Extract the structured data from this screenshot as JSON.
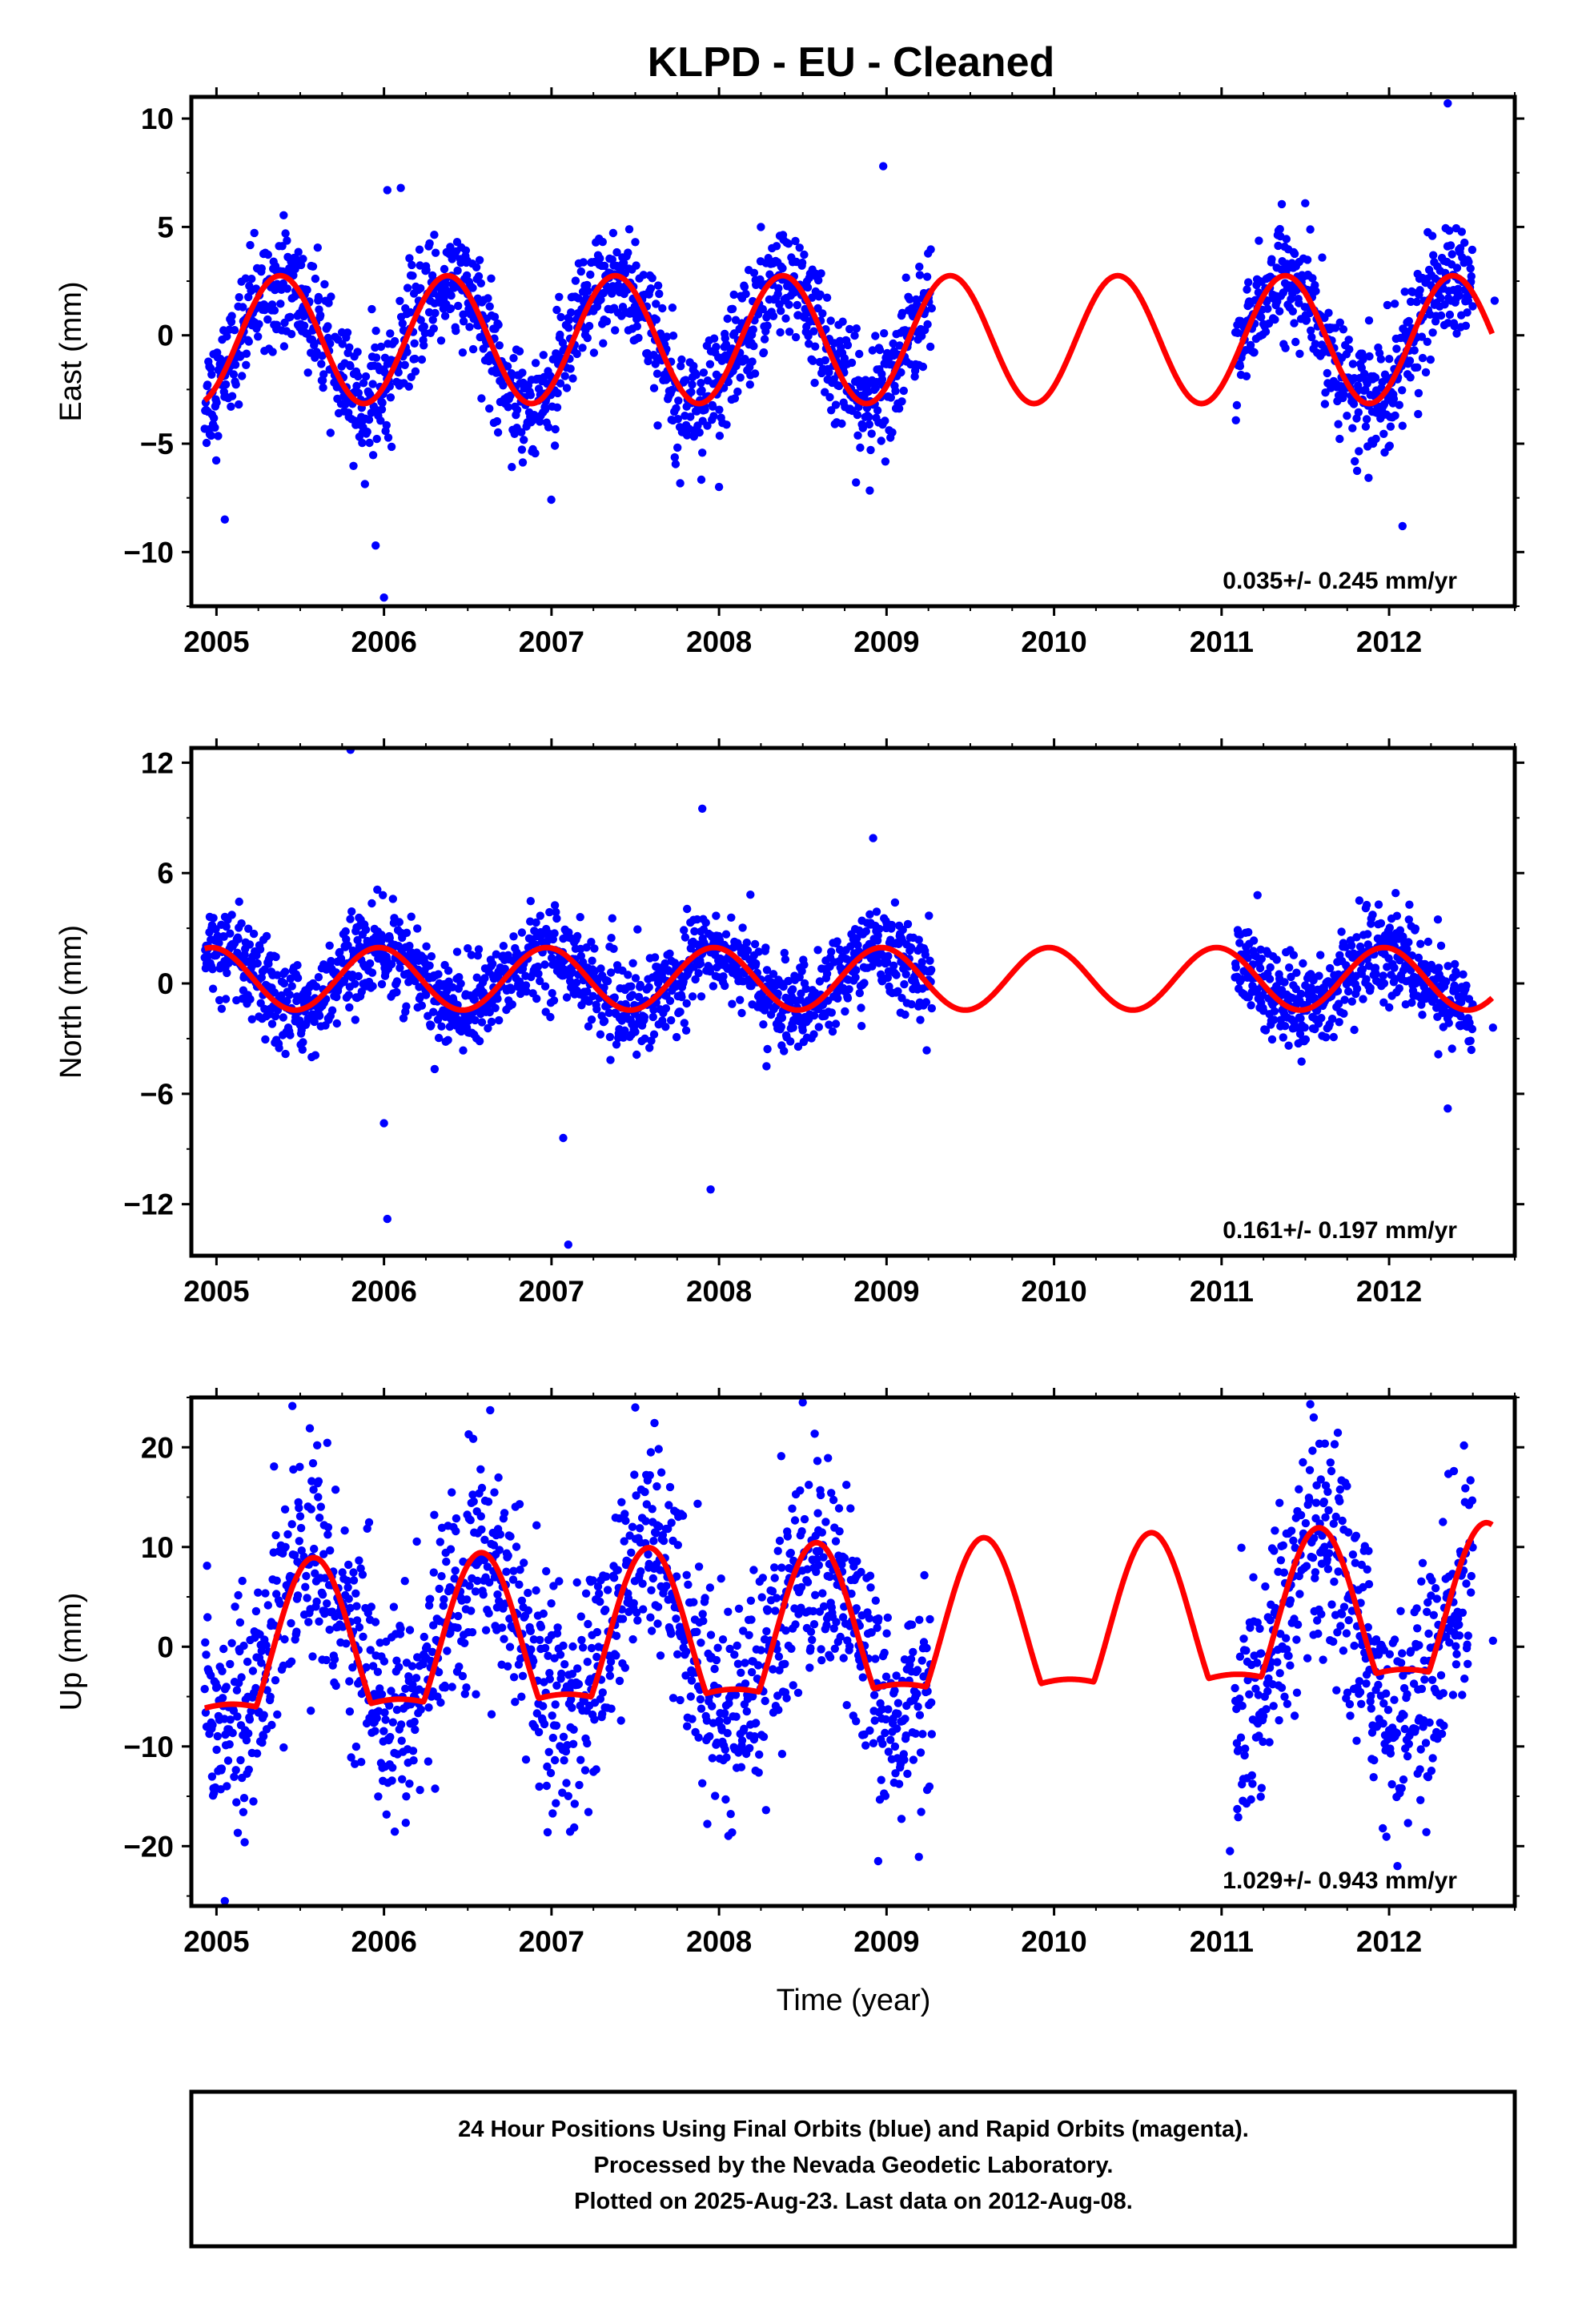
{
  "title": "KLPD  - EU - Cleaned",
  "colors": {
    "points": "#0000ff",
    "fit": "#ff0000",
    "frame": "#000000"
  },
  "chart_data": [
    {
      "type": "scatter",
      "component": "east",
      "ylabel": "East (mm)",
      "xlim": [
        2004.85,
        2012.75
      ],
      "ylim": [
        -12.5,
        11
      ],
      "yticks": [
        10,
        5,
        0,
        -5,
        -10
      ],
      "ytick_labels": [
        "10",
        "5",
        "0",
        "−10"
      ],
      "ytick_labels_all": [
        "10",
        "5",
        "0",
        "−5",
        "−10"
      ],
      "xticks": [
        2005,
        2006,
        2007,
        2008,
        2009,
        2010,
        2011,
        2012
      ],
      "xtick_labels": [
        "2005",
        "2006",
        "2007",
        "2008",
        "2009",
        "2010",
        "2011",
        "2012"
      ],
      "rate_label": "0.035+/- 0.245 mm/yr",
      "series": [
        {
          "kind": "points",
          "segments": [
            [
              2004.93,
              2009.27
            ],
            [
              2011.08,
              2012.5
            ]
          ],
          "amplitude": 2.8,
          "phase": 0.38,
          "offset": -0.3,
          "noise": 1.3,
          "outliers": [
            [
              2005.05,
              -8.5
            ],
            [
              2005.95,
              -9.7
            ],
            [
              2006.0,
              -12.1
            ],
            [
              2006.02,
              6.7
            ],
            [
              2006.1,
              6.8
            ],
            [
              2007.5,
              4.3
            ],
            [
              2008.0,
              -7.0
            ],
            [
              2008.25,
              5.0
            ],
            [
              2008.98,
              7.8
            ],
            [
              2012.35,
              10.7
            ],
            [
              2012.08,
              -8.8
            ],
            [
              2012.63,
              1.6
            ]
          ]
        },
        {
          "kind": "fit",
          "amplitude": 2.95,
          "phase": 0.38,
          "offset": -0.2,
          "end": 2012.62
        }
      ]
    },
    {
      "type": "scatter",
      "component": "north",
      "ylabel": "North (mm)",
      "xlim": [
        2004.85,
        2012.75
      ],
      "ylim": [
        -14.8,
        12.8
      ],
      "yticks": [
        12,
        6,
        0,
        -6,
        -12
      ],
      "ytick_labels_all": [
        "12",
        "6",
        "0",
        "−6",
        "−12"
      ],
      "xticks": [
        2005,
        2006,
        2007,
        2008,
        2009,
        2010,
        2011,
        2012
      ],
      "xtick_labels": [
        "2005",
        "2006",
        "2007",
        "2008",
        "2009",
        "2010",
        "2011",
        "2012"
      ],
      "rate_label": "0.161+/- 0.197 mm/yr",
      "series": [
        {
          "kind": "points",
          "segments": [
            [
              2004.93,
              2009.27
            ],
            [
              2011.08,
              2012.5
            ]
          ],
          "amplitude": 1.6,
          "phase": -0.03,
          "offset": 0.2,
          "noise": 1.2,
          "outliers": [
            [
              2005.8,
              12.7
            ],
            [
              2006.0,
              -7.6
            ],
            [
              2006.02,
              -12.8
            ],
            [
              2007.07,
              -8.4
            ],
            [
              2007.1,
              -14.2
            ],
            [
              2007.9,
              9.5
            ],
            [
              2007.95,
              -11.2
            ],
            [
              2008.92,
              7.9
            ],
            [
              2012.35,
              -6.8
            ],
            [
              2012.62,
              -2.4
            ]
          ]
        },
        {
          "kind": "fit",
          "amplitude": 1.7,
          "phase": -0.03,
          "offset": 0.25,
          "end": 2012.62
        }
      ]
    },
    {
      "type": "scatter",
      "component": "up",
      "ylabel": "Up (mm)",
      "xlim": [
        2004.85,
        2012.75
      ],
      "ylim": [
        -26,
        25
      ],
      "yticks": [
        20,
        10,
        0,
        -10,
        -20
      ],
      "ytick_labels_all": [
        "20",
        "10",
        "0",
        "−10",
        "−20"
      ],
      "xticks": [
        2005,
        2006,
        2007,
        2008,
        2009,
        2010,
        2011,
        2012
      ],
      "xtick_labels": [
        "2005",
        "2006",
        "2007",
        "2008",
        "2009",
        "2010",
        "2011",
        "2012"
      ],
      "xlabel": "Time (year)",
      "rate_label": "1.029+/- 0.943 mm/yr",
      "series": [
        {
          "kind": "points",
          "segments": [
            [
              2004.93,
              2009.27
            ],
            [
              2011.08,
              2012.5
            ]
          ],
          "amplitude": 8.0,
          "phase": 0.58,
          "offset": 1.0,
          "noise": 5.5,
          "outliers": [
            [
              2005.05,
              -25.5
            ],
            [
              2007.5,
              24.0
            ],
            [
              2008.5,
              24.5
            ],
            [
              2008.95,
              -21.5
            ],
            [
              2011.05,
              -20.5
            ],
            [
              2011.55,
              23.0
            ],
            [
              2012.05,
              -22.0
            ],
            [
              2012.62,
              0.6
            ]
          ]
        },
        {
          "kind": "fit",
          "amplitude": 8.3,
          "phase": 0.58,
          "offset": 1.0,
          "end": 2012.62
        }
      ]
    }
  ],
  "footer": {
    "line1": "24 Hour Positions Using Final Orbits (blue) and Rapid Orbits (magenta).",
    "line2": "Processed by the Nevada Geodetic Laboratory.",
    "line3": "Plotted on 2025-Aug-23. Last data on 2012-Aug-08."
  }
}
